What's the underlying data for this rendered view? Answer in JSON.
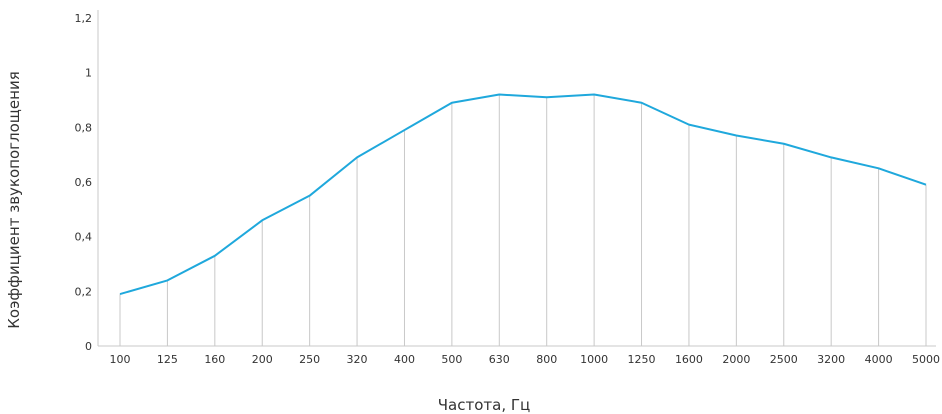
{
  "chart_data": {
    "type": "line",
    "xlabel": "Частота,  Гц",
    "ylabel": "Коэффициент звукопоглощения",
    "categories": [
      "100",
      "125",
      "160",
      "200",
      "250",
      "320",
      "400",
      "500",
      "630",
      "800",
      "1000",
      "1250",
      "1600",
      "2000",
      "2500",
      "3200",
      "4000",
      "5000"
    ],
    "series": [
      {
        "values": [
          0.19,
          0.24,
          0.33,
          0.46,
          0.55,
          0.69,
          0.79,
          0.89,
          0.92,
          0.91,
          0.92,
          0.89,
          0.81,
          0.77,
          0.74,
          0.69,
          0.65,
          0.59
        ]
      }
    ],
    "ylim": [
      0,
      1.2
    ],
    "yticks": [
      {
        "value": 0,
        "label": "0"
      },
      {
        "value": 0.2,
        "label": "0,2"
      },
      {
        "value": 0.4,
        "label": "0,4"
      },
      {
        "value": 0.6,
        "label": "0,6"
      },
      {
        "value": 0.8,
        "label": "0,8"
      },
      {
        "value": 1.0,
        "label": "1"
      },
      {
        "value": 1.2,
        "label": "1,2"
      }
    ],
    "grid": false,
    "line_color": "#1fa8dc",
    "drop_line_color": "#c8c8c8"
  }
}
